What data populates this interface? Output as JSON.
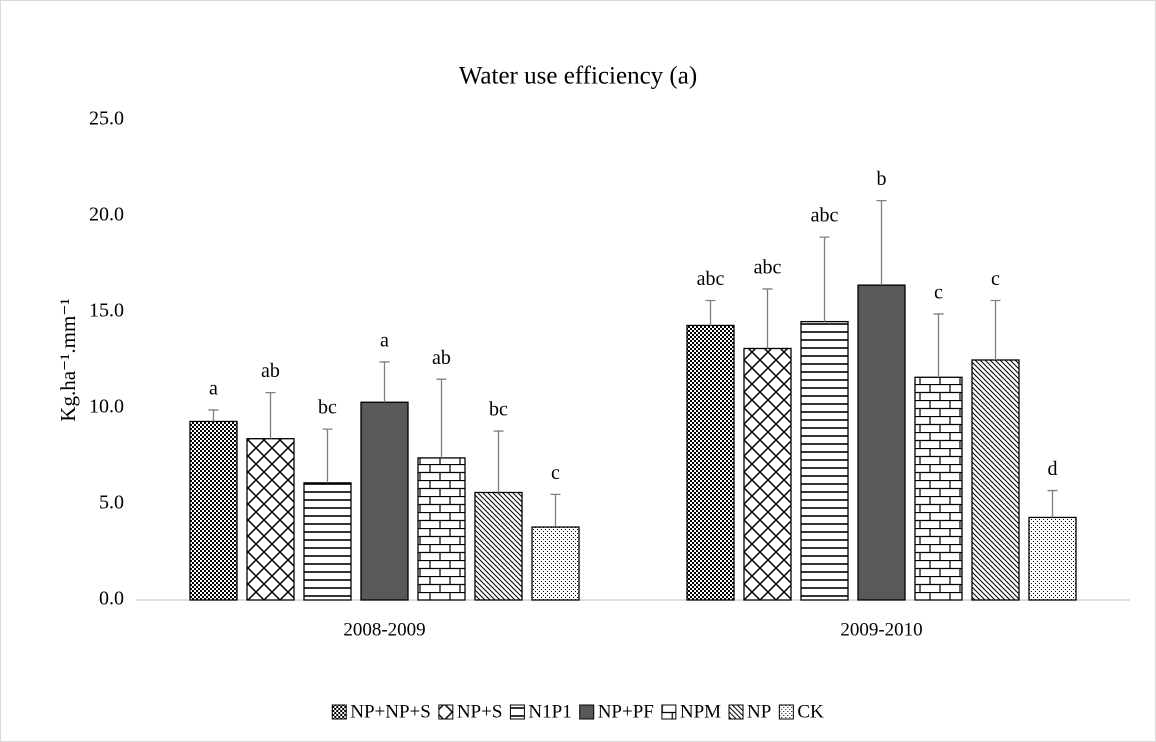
{
  "chart_data": {
    "type": "bar",
    "title": "Water use efficiency (a)",
    "y_label": "Kg.ha⁻¹.mm⁻¹",
    "categories": [
      "2008-2009",
      "2009-2010"
    ],
    "ylim": [
      0,
      25
    ],
    "yticks": [
      {
        "value": 0,
        "label": "0.0"
      },
      {
        "value": 5,
        "label": "5.0"
      },
      {
        "value": 10,
        "label": "10.0"
      },
      {
        "value": 15,
        "label": "15.0"
      },
      {
        "value": 20,
        "label": "20.0"
      },
      {
        "value": 25,
        "label": "25.0"
      }
    ],
    "grid": false,
    "legend": "bottom",
    "series": [
      {
        "name": "NP+NP+S",
        "color": "#000000",
        "pattern": "dense-dots",
        "values": [
          9.3,
          14.3
        ],
        "errors": [
          0.6,
          1.3
        ],
        "letters": [
          "a",
          "abc"
        ]
      },
      {
        "name": "NP+S",
        "color": "#000000",
        "pattern": "diagonal-cross",
        "values": [
          8.4,
          13.1
        ],
        "errors": [
          2.4,
          3.1
        ],
        "letters": [
          "ab",
          "abc"
        ]
      },
      {
        "name": "N1P1",
        "color": "#000000",
        "pattern": "horizontal",
        "values": [
          6.1,
          14.5
        ],
        "errors": [
          2.8,
          4.4
        ],
        "letters": [
          "bc",
          "abc"
        ]
      },
      {
        "name": "NP+PF",
        "color": "#595959",
        "pattern": "solid",
        "values": [
          10.3,
          16.4
        ],
        "errors": [
          2.1,
          4.4
        ],
        "letters": [
          "a",
          "b"
        ]
      },
      {
        "name": "NPM",
        "color": "#000000",
        "pattern": "brick",
        "values": [
          7.4,
          11.6
        ],
        "errors": [
          4.1,
          3.3
        ],
        "letters": [
          "ab",
          "c"
        ]
      },
      {
        "name": "NP",
        "color": "#000000",
        "pattern": "diagonal",
        "values": [
          5.6,
          12.5
        ],
        "errors": [
          3.2,
          3.1
        ],
        "letters": [
          "bc",
          "c"
        ]
      },
      {
        "name": "CK",
        "color": "#000000",
        "pattern": "sparse-dots",
        "values": [
          3.8,
          4.3
        ],
        "errors": [
          1.7,
          1.4
        ],
        "letters": [
          "c",
          "d"
        ]
      }
    ]
  }
}
